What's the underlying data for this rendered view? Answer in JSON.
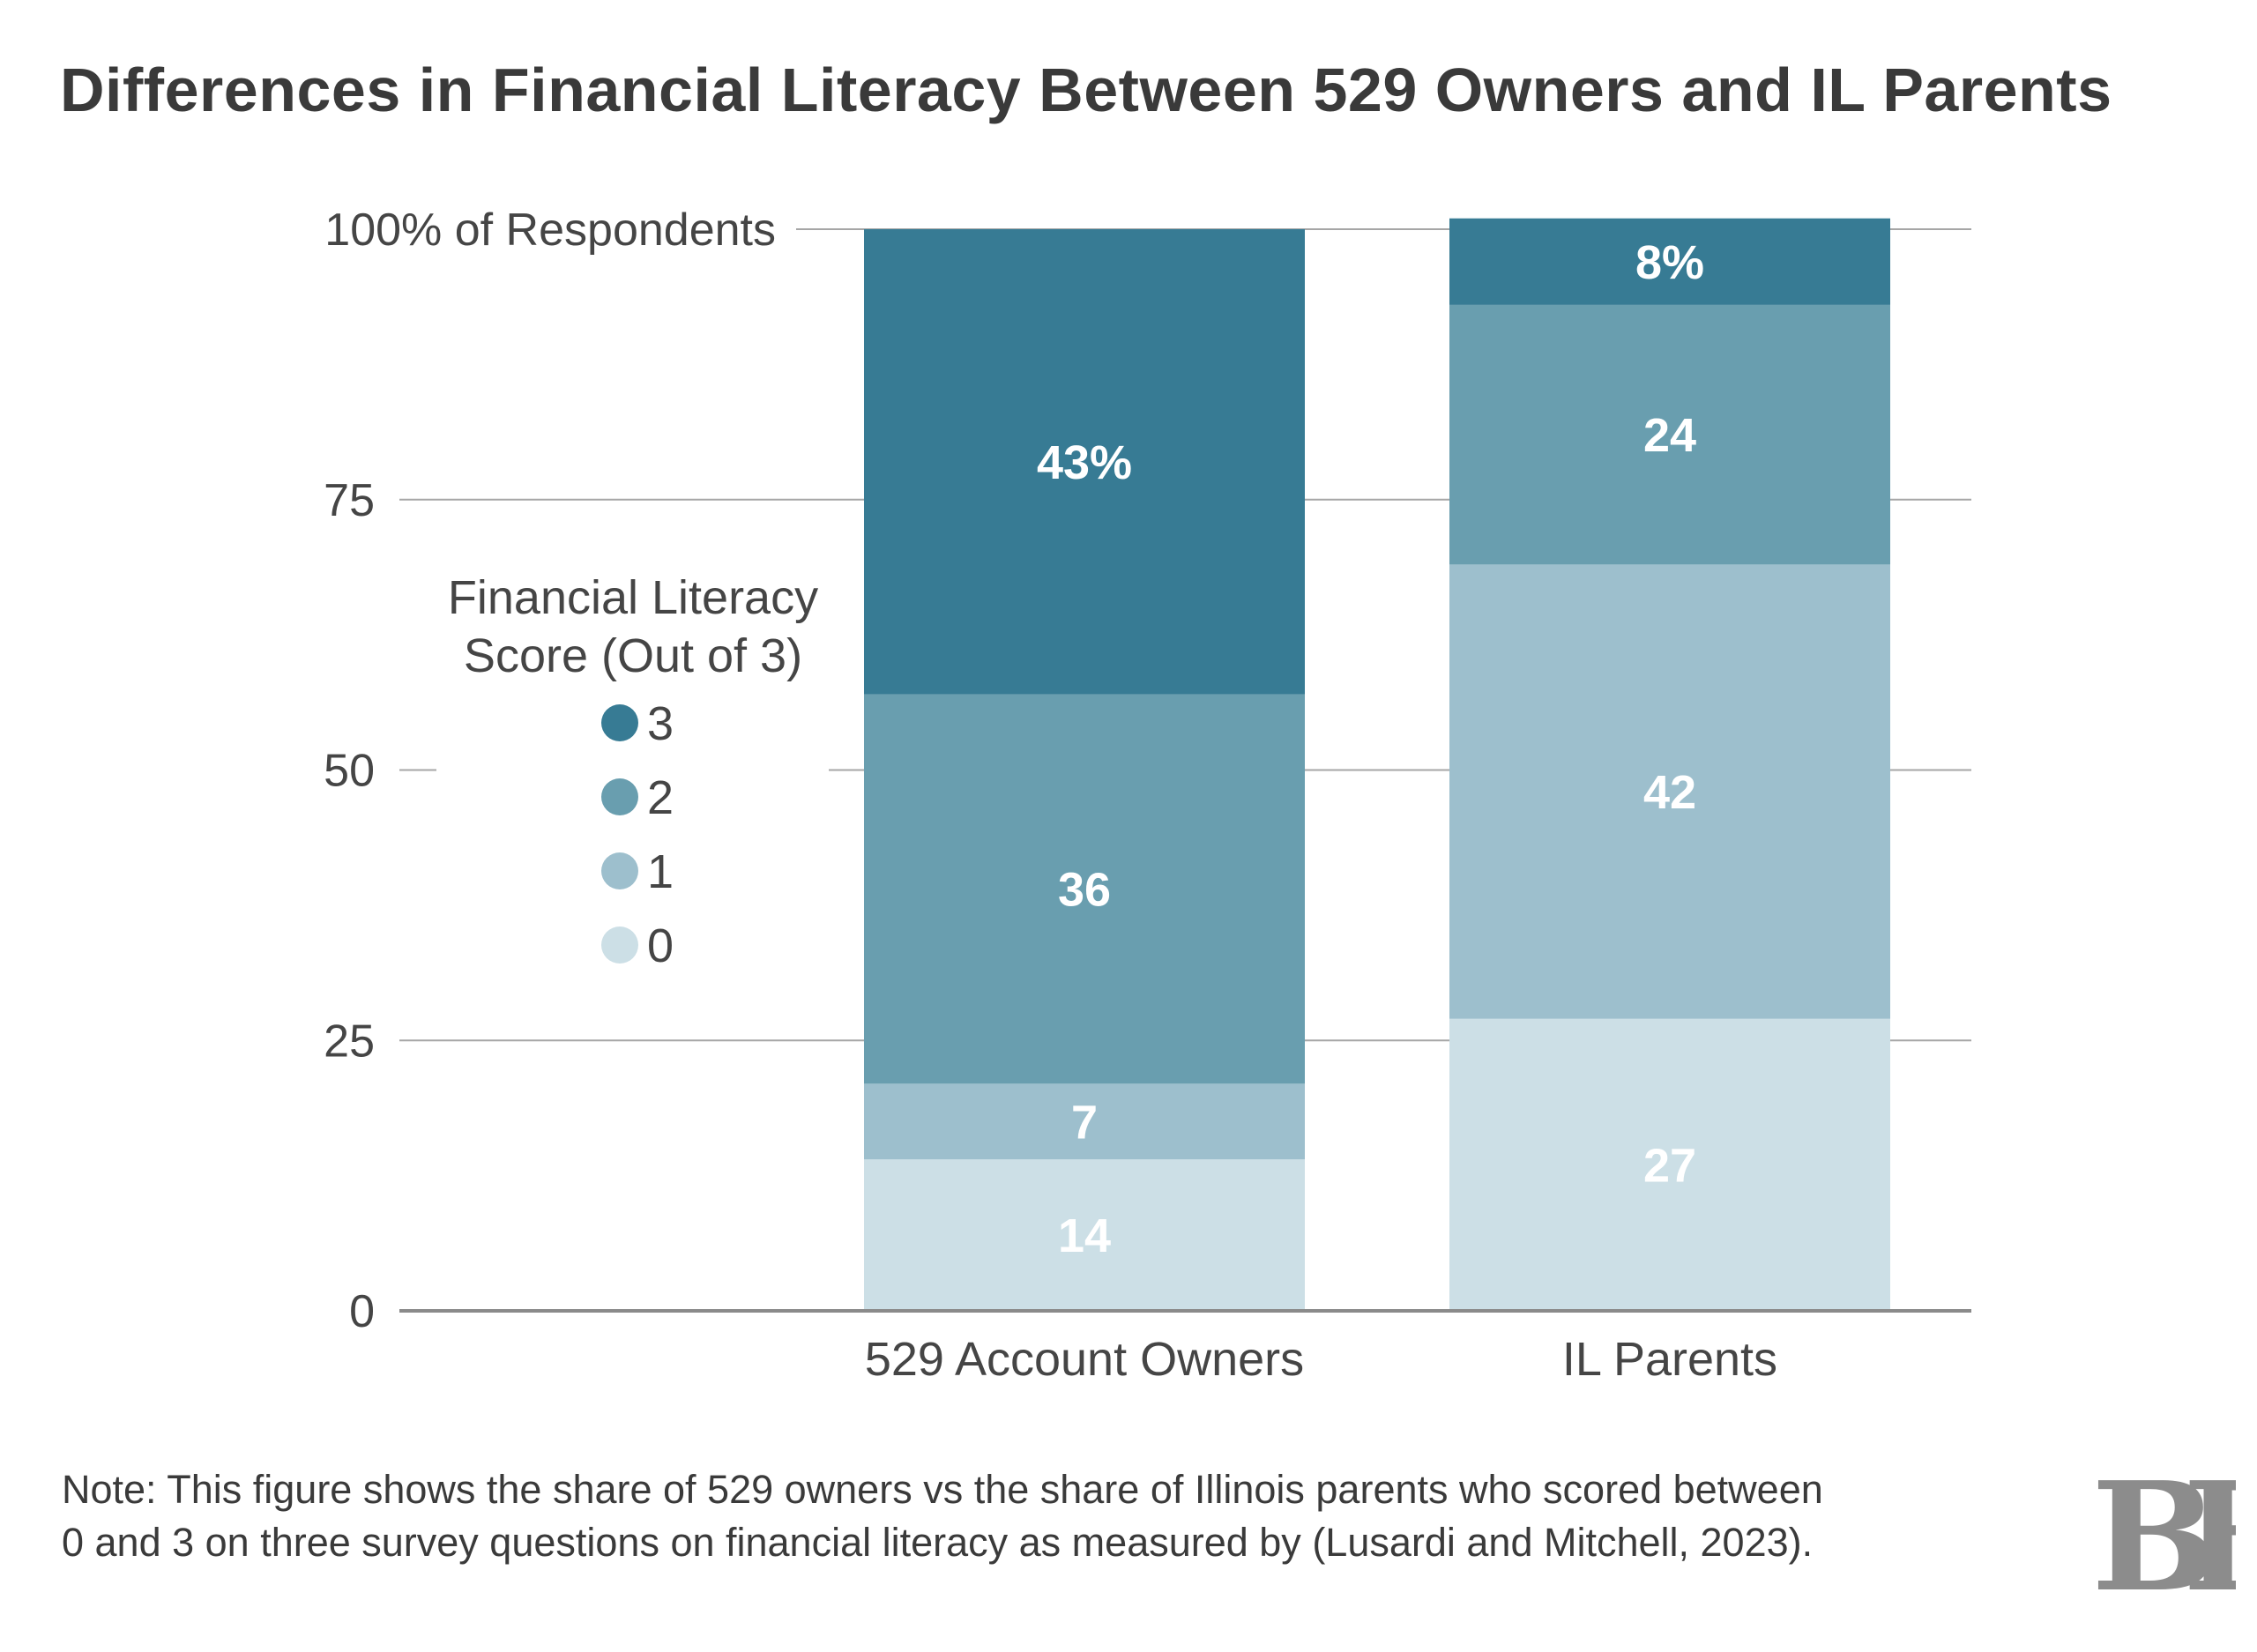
{
  "title": "Differences in Financial Literacy Between 529 Owners and IL Parents",
  "note": "Note: This figure shows the share of 529 owners vs the share of Illinois parents who scored between 0 and 3 on three survey questions on financial literacy as measured by (Lusardi and Mitchell, 2023).",
  "logo_text": "BF",
  "chart_data": {
    "type": "bar",
    "stacked": true,
    "categories": [
      "529 Account Owners",
      "IL Parents"
    ],
    "ylim": [
      0,
      100
    ],
    "y_ticks": [
      {
        "value": 0,
        "label": "0"
      },
      {
        "value": 25,
        "label": "25"
      },
      {
        "value": 50,
        "label": "50"
      },
      {
        "value": 75,
        "label": "75"
      },
      {
        "value": 100,
        "label": "100% of Respondents"
      }
    ],
    "legend_title_lines": [
      "Financial Literacy",
      "Score (Out of 3)"
    ],
    "legend_position": "left",
    "grid": true,
    "series": [
      {
        "name": "0",
        "values": [
          14,
          27
        ],
        "labels": [
          "14",
          "27"
        ],
        "color": "#ccdfe6"
      },
      {
        "name": "1",
        "values": [
          7,
          42
        ],
        "labels": [
          "7",
          "42"
        ],
        "color": "#9dbfcd"
      },
      {
        "name": "2",
        "values": [
          36,
          24
        ],
        "labels": [
          "36",
          "24"
        ],
        "color": "#699eaf"
      },
      {
        "name": "3",
        "values": [
          43,
          8
        ],
        "labels": [
          "43%",
          "8%"
        ],
        "color": "#377b94"
      }
    ]
  }
}
